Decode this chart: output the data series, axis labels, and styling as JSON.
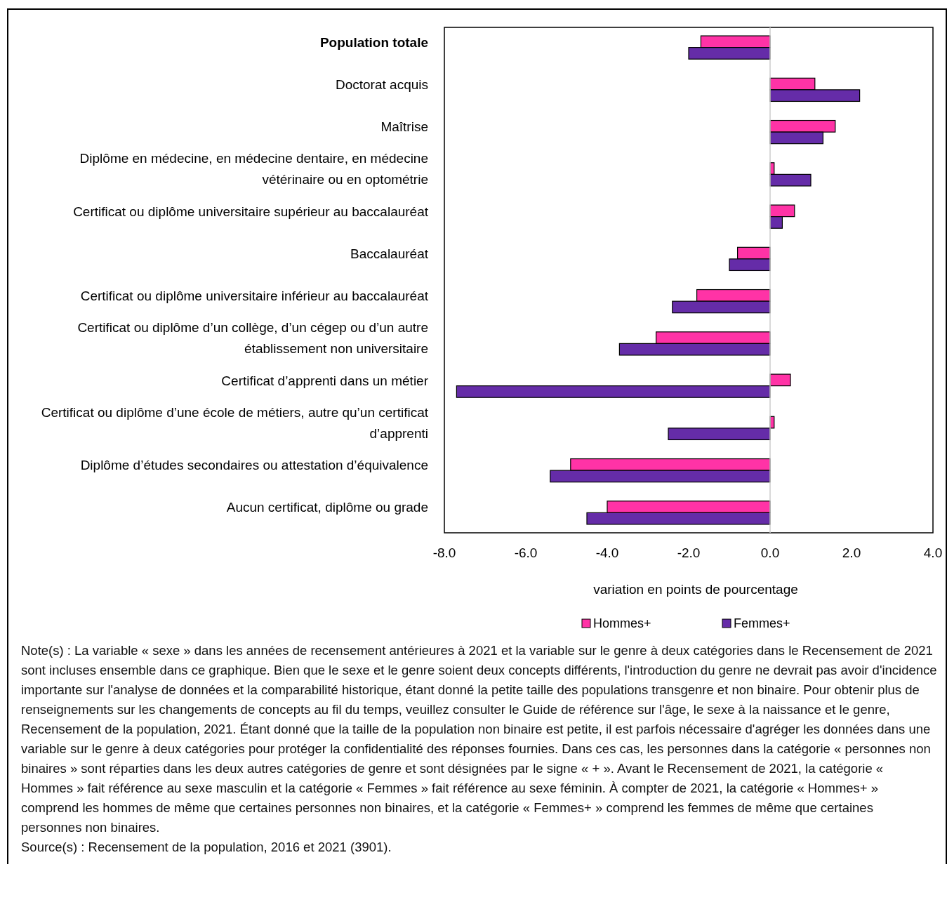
{
  "chart_data": {
    "type": "bar",
    "orientation": "horizontal",
    "categories": [
      "Population totale",
      "Doctorat acquis",
      "Maîtrise",
      "Diplôme en médecine, en médecine dentaire, en médecine vétérinaire ou en optométrie",
      "Certificat ou diplôme universitaire supérieur au baccalauréat",
      "Baccalauréat",
      "Certificat ou diplôme universitaire inférieur au baccalauréat",
      "Certificat ou diplôme d’un collège, d’un cégep ou d’un autre établissement non universitaire",
      "Certificat d’apprenti dans un métier",
      "Certificat ou diplôme d’une école de métiers, autre qu’un certificat d’apprenti",
      "Diplôme d’études secondaires ou attestation d’équivalence",
      "Aucun certificat, diplôme ou grade"
    ],
    "series": [
      {
        "name": "Hommes+",
        "color": "#ff33a6",
        "values": [
          -1.7,
          1.1,
          1.6,
          0.1,
          0.6,
          -0.8,
          -1.8,
          -2.8,
          0.5,
          0.1,
          -4.9,
          -4.0
        ]
      },
      {
        "name": "Femmes+",
        "color": "#652ca8",
        "values": [
          -2.0,
          2.2,
          1.3,
          1.0,
          0.3,
          -1.0,
          -2.4,
          -3.7,
          -7.7,
          -2.5,
          -5.4,
          -4.5
        ]
      }
    ],
    "xlim": [
      -8,
      4
    ],
    "xticks": [
      {
        "value": -8,
        "label": "-8.0"
      },
      {
        "value": -6,
        "label": "-6.0"
      },
      {
        "value": -4,
        "label": "-4.0"
      },
      {
        "value": -2,
        "label": "-2.0"
      },
      {
        "value": 0,
        "label": "0.0"
      },
      {
        "value": 2,
        "label": "2.0"
      },
      {
        "value": 4,
        "label": "4.0"
      }
    ],
    "xlabel": "variation en points de pourcentage",
    "legend": "bottom",
    "ref_lines": [
      {
        "axis": "x",
        "value": 0,
        "color": "#cccccc"
      }
    ],
    "annotations": [
      "Note(s) : La variable « sexe » dans les années de recensement antérieures à 2021 et la variable sur le genre à deux catégories dans le Recensement de 2021 sont incluses ensemble dans ce graphique. Bien que le sexe et le genre soient deux concepts différents, l'introduction du genre ne devrait pas avoir d'incidence importante sur l'analyse de données et la comparabilité historique, étant donné la petite taille des populations transgenre et non binaire. Pour obtenir plus de renseignements sur les changements de concepts au fil du temps, veuillez consulter le Guide de référence sur l'âge, le sexe à la naissance et le genre, Recensement de la population, 2021. Étant donné que la taille de la population non binaire est petite, il est parfois nécessaire d'agréger les données dans une variable sur le genre à deux catégories pour protéger la confidentialité des réponses fournies. Dans ces cas, les personnes dans la catégorie « personnes non binaires » sont réparties dans les deux autres catégories de genre et sont désignées par le signe « + ». Avant le Recensement de 2021, la catégorie « Hommes » fait référence au sexe masculin et la catégorie « Femmes » fait référence au sexe féminin. À compter de 2021, la catégorie « Hommes+ » comprend les hommes de même que certaines personnes non binaires, et la catégorie « Femmes+ » comprend les femmes de même que certaines personnes non binaires.",
      "Source(s) : Recensement de la population, 2016 et 2021 (3901)."
    ]
  }
}
